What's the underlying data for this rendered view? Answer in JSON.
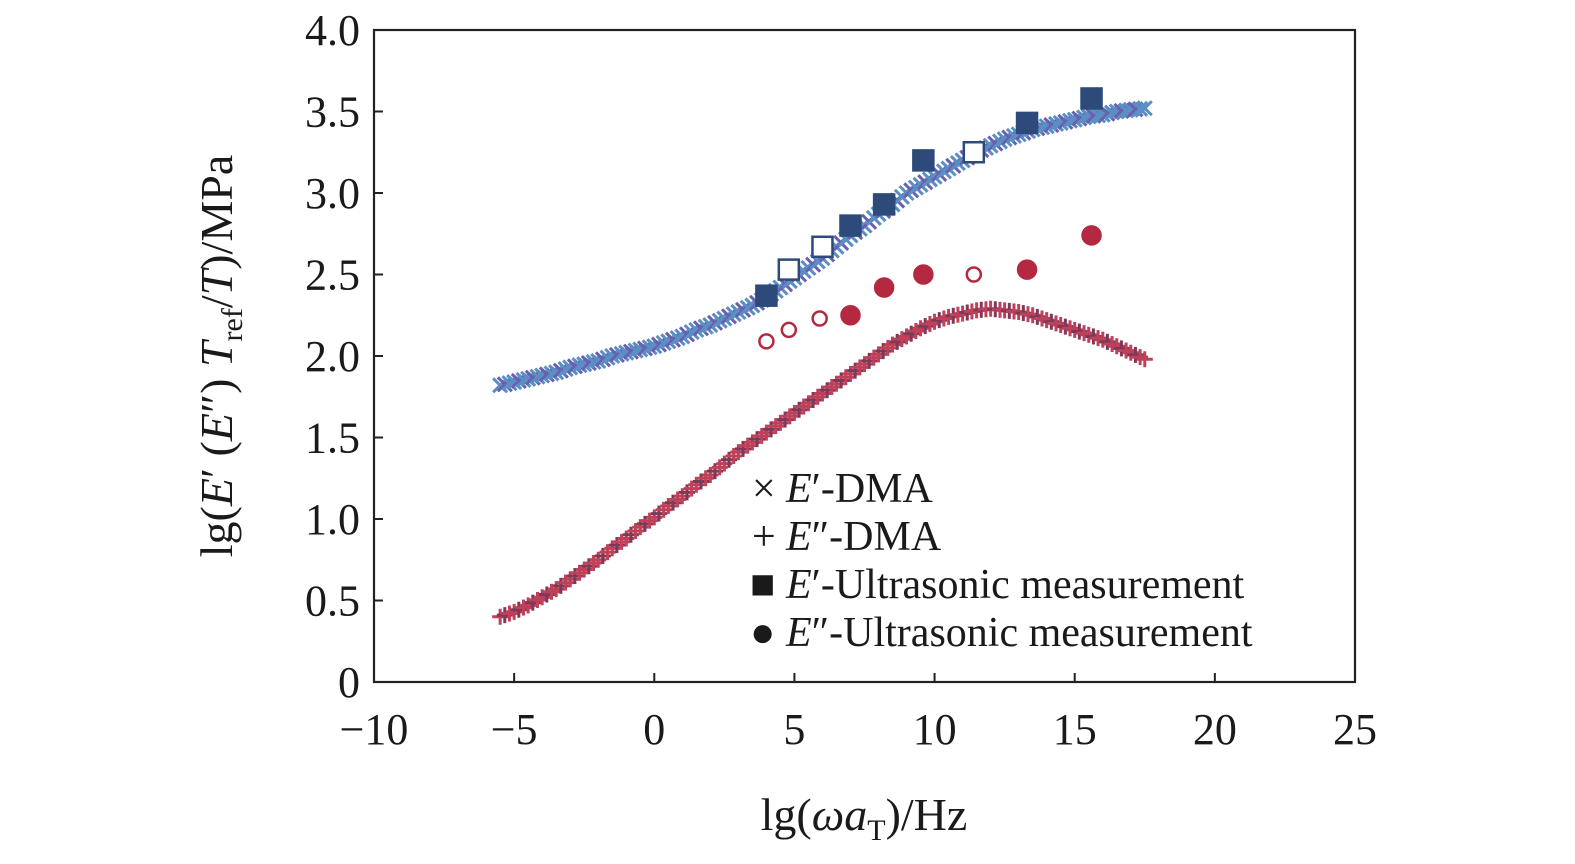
{
  "chart_data": {
    "type": "scatter",
    "title": "",
    "xlabel": {
      "pre": "lg(",
      "omega": "ω",
      "a": "a",
      "sub": "T",
      "post": ")/Hz"
    },
    "ylabel": {
      "pre": "lg(",
      "e1": "E",
      "e1p": "′ (",
      "e2": "E",
      "e2p": "″) ",
      "t": "T",
      "sub": "ref",
      "mid": "/",
      "t2": "T",
      "post": ")/MPa"
    },
    "xlim": [
      -10,
      25
    ],
    "ylim": [
      0,
      4.0
    ],
    "xticks": [
      -10,
      -5,
      0,
      5,
      10,
      15,
      20,
      25
    ],
    "xtick_labels": [
      "−10",
      "−5",
      "0",
      "5",
      "10",
      "15",
      "20",
      "25"
    ],
    "yticks": [
      0,
      0.5,
      1.0,
      1.5,
      2.0,
      2.5,
      3.0,
      3.5,
      4.0
    ],
    "ytick_labels": [
      "0",
      "0.5",
      "1.0",
      "1.5",
      "2.0",
      "2.5",
      "3.0",
      "3.5",
      "4.0"
    ],
    "grid": false,
    "legend_position": "bottom-center",
    "legend": [
      {
        "marker": "×",
        "sym": "E",
        "prime": "′",
        "text": "-DMA"
      },
      {
        "marker": "+",
        "sym": "E",
        "prime": "″",
        "text": "-DMA"
      },
      {
        "marker": "■",
        "sym": "E",
        "prime": "′",
        "text": "-Ultrasonic measurement"
      },
      {
        "marker": "●",
        "sym": "E",
        "prime": "″",
        "text": "-Ultrasonic measurement"
      }
    ],
    "colors": {
      "storage_dma": "#5b8fc4",
      "storage_dma_accent": "#6a5fb0",
      "loss_dma": "#c0405a",
      "loss_dma_accent": "#7a3a58",
      "storage_ultra": "#2d4a7a",
      "loss_ultra": "#b42840"
    },
    "series": [
      {
        "key": "storage_dma",
        "x": [
          -5.5,
          -5.0,
          -4.5,
          -4.0,
          -3.5,
          -3.0,
          -2.5,
          -2.0,
          -1.5,
          -1.0,
          -0.5,
          0.0,
          0.5,
          1.0,
          1.5,
          2.0,
          2.5,
          3.0,
          3.5,
          4.0,
          4.5,
          5.0,
          5.5,
          6.0,
          6.5,
          7.0,
          7.5,
          8.0,
          8.5,
          9.0,
          9.5,
          10.0,
          10.5,
          11.0,
          11.5,
          12.0,
          12.5,
          13.0,
          13.5,
          14.0,
          14.5,
          15.0,
          15.5,
          16.0,
          16.5,
          17.0,
          17.5
        ],
        "y": [
          1.82,
          1.84,
          1.86,
          1.88,
          1.9,
          1.93,
          1.95,
          1.97,
          2.0,
          2.02,
          2.04,
          2.06,
          2.09,
          2.12,
          2.16,
          2.19,
          2.23,
          2.27,
          2.31,
          2.36,
          2.42,
          2.48,
          2.54,
          2.6,
          2.67,
          2.74,
          2.8,
          2.87,
          2.93,
          3.0,
          3.05,
          3.1,
          3.15,
          3.2,
          3.25,
          3.29,
          3.33,
          3.36,
          3.39,
          3.41,
          3.43,
          3.45,
          3.47,
          3.48,
          3.5,
          3.51,
          3.52
        ]
      },
      {
        "key": "loss_dma",
        "x": [
          -5.5,
          -5.0,
          -4.5,
          -4.0,
          -3.5,
          -3.0,
          -2.5,
          -2.0,
          -1.5,
          -1.0,
          -0.5,
          0.0,
          0.5,
          1.0,
          1.5,
          2.0,
          2.5,
          3.0,
          3.5,
          4.0,
          4.5,
          5.0,
          5.5,
          6.0,
          6.5,
          7.0,
          7.5,
          8.0,
          8.5,
          9.0,
          9.5,
          10.0,
          10.5,
          11.0,
          11.5,
          12.0,
          12.5,
          13.0,
          13.5,
          14.0,
          14.5,
          15.0,
          15.5,
          16.0,
          16.5,
          17.0,
          17.5
        ],
        "y": [
          0.4,
          0.43,
          0.47,
          0.52,
          0.57,
          0.63,
          0.69,
          0.75,
          0.82,
          0.88,
          0.95,
          1.01,
          1.08,
          1.14,
          1.21,
          1.27,
          1.34,
          1.41,
          1.47,
          1.53,
          1.59,
          1.65,
          1.71,
          1.77,
          1.83,
          1.89,
          1.95,
          2.01,
          2.07,
          2.12,
          2.17,
          2.21,
          2.24,
          2.26,
          2.28,
          2.29,
          2.28,
          2.27,
          2.25,
          2.22,
          2.19,
          2.16,
          2.13,
          2.1,
          2.06,
          2.02,
          1.98
        ]
      },
      {
        "key": "storage_ultra",
        "x": [
          4.0,
          4.8,
          6.0,
          7.0,
          8.2,
          9.6,
          11.4,
          13.3,
          15.6
        ],
        "y": [
          2.37,
          2.53,
          2.67,
          2.8,
          2.93,
          3.2,
          3.25,
          3.43,
          3.58
        ],
        "filled": [
          true,
          false,
          false,
          true,
          true,
          true,
          false,
          true,
          true
        ]
      },
      {
        "key": "loss_ultra",
        "x": [
          4.0,
          4.8,
          5.9,
          7.0,
          8.2,
          9.6,
          11.4,
          13.3,
          15.6
        ],
        "y": [
          2.09,
          2.16,
          2.23,
          2.25,
          2.42,
          2.5,
          2.5,
          2.53,
          2.74
        ],
        "filled": [
          false,
          false,
          false,
          true,
          true,
          true,
          false,
          true,
          true
        ]
      }
    ]
  }
}
